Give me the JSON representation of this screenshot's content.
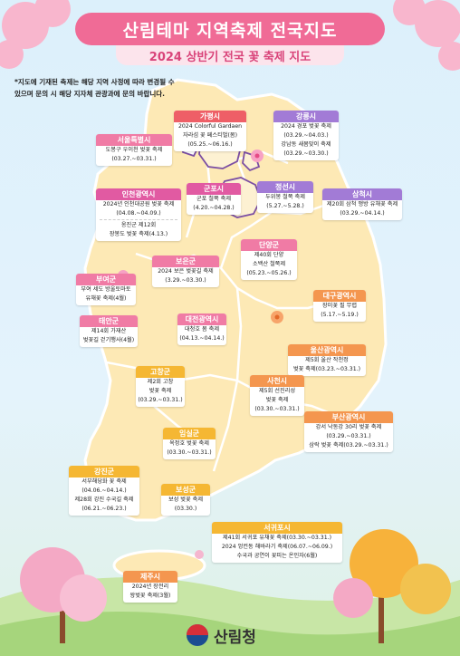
{
  "header": {
    "title": "산림테마 지역축제 전국지도",
    "subtitle": "2024 상반기 전국 꽃 축제 지도",
    "notice_line1": "*지도에 기재된 축제는 해당 지역 사정에 따라 변경될 수",
    "notice_line2": "있으며 문의 시 해당 지자체 관광과에 문의 바랍니다."
  },
  "colors": {
    "brand_pink": "#f06b96",
    "map_land": "#fde9b5",
    "map_border": "#ffffff",
    "map_region_line": "#7b4ea3"
  },
  "festivals": [
    {
      "region": "서울특별시",
      "lines": [
        "도봉구 우이천 벚꽃 축제",
        "(03.27.~03.31.)"
      ]
    },
    {
      "region": "가평시",
      "lines": [
        "2024 Colorful Gardaen",
        "자라섬 꽃 페스티벌(봄)",
        "(05.25.~06.16.)"
      ]
    },
    {
      "region": "강릉시",
      "lines": [
        "2024 경포 벚꽃 축제",
        "(03.29.~04.03.)",
        "강남동 새봄맞이 축제",
        "(03.29.~03.30.)"
      ]
    },
    {
      "region": "인천광역시",
      "lines": [
        "2024년 인천대공원 벚꽃 축제",
        "(04.08.~04.09.)",
        "옹진군 제12회",
        "장봉도 벚꽃 축제(4.13.)"
      ]
    },
    {
      "region": "군포시",
      "lines": [
        "군포 철쭉 축제",
        "(4.20.~04.28.)"
      ]
    },
    {
      "region": "정선시",
      "lines": [
        "두위봉 철쭉 축제",
        "(5.27.~5.28.)"
      ]
    },
    {
      "region": "삼척시",
      "lines": [
        "제20회 삼척 맹방 유채꽃 축제",
        "(03.29.~04.14.)"
      ]
    },
    {
      "region": "단양군",
      "lines": [
        "제40회 단양",
        "소백산 철쭉제",
        "(05.23.~05.26.)"
      ]
    },
    {
      "region": "보은군",
      "lines": [
        "2024 보은 벚꽃길 축제",
        "(3.29.~03.30.)"
      ]
    },
    {
      "region": "부여군",
      "lines": [
        "부여 세도 방울토마토",
        "유채꽃 축제(4월)"
      ]
    },
    {
      "region": "태안군",
      "lines": [
        "제14회 가재산",
        "벚꽃길 걷기행사(4월)"
      ]
    },
    {
      "region": "대전광역시",
      "lines": [
        "대청호 봄 축제",
        "(04.13.~04.14.)"
      ]
    },
    {
      "region": "대구광역시",
      "lines": [
        "장미꽃 필 무렵",
        "(5.17.~5.19.)"
      ]
    },
    {
      "region": "울산광역시",
      "lines": [
        "제5회 울산 작천정",
        "벚꽃 축제(03.23.~03.31.)"
      ]
    },
    {
      "region": "고창군",
      "lines": [
        "제2회 고창",
        "벚꽃 축제",
        "(03.29.~03.31.)"
      ]
    },
    {
      "region": "사천시",
      "lines": [
        "제5회 선진리성",
        "벚꽃 축제",
        "(03.30.~03.31.)"
      ]
    },
    {
      "region": "부산광역시",
      "lines": [
        "강서 낙동강 30리 벚꽃 축제",
        "(03.29.~03.31.)",
        "삼락 벚꽃 축제(03.29.~03.31.)"
      ]
    },
    {
      "region": "임실군",
      "lines": [
        "옥정호 벚꽃 축제",
        "(03.30.~03.31.)"
      ]
    },
    {
      "region": "강진군",
      "lines": [
        "서부해당화 꽃 축제",
        "(04.06.~04.14.)",
        "제28회 강진 수국길 축제",
        "(06.21.~06.23.)"
      ]
    },
    {
      "region": "보성군",
      "lines": [
        "보성 벚꽃 축제",
        "(03.30.)"
      ]
    },
    {
      "region": "서귀포시",
      "lines": [
        "제41회 서귀포 유채꽃 축제(03.30.~03.31.)",
        "2024 엉컨동 해바라기 축제(06.07.~06.09.)",
        "수국과 공연이 꽃피는 온인자(6월)"
      ]
    },
    {
      "region": "제주시",
      "lines": [
        "2024년 장전리",
        "왕벚꽃 축제(3월)"
      ]
    }
  ],
  "footer": {
    "logo_text": "산림청",
    "logo_icon": "korea-emblem-icon"
  }
}
